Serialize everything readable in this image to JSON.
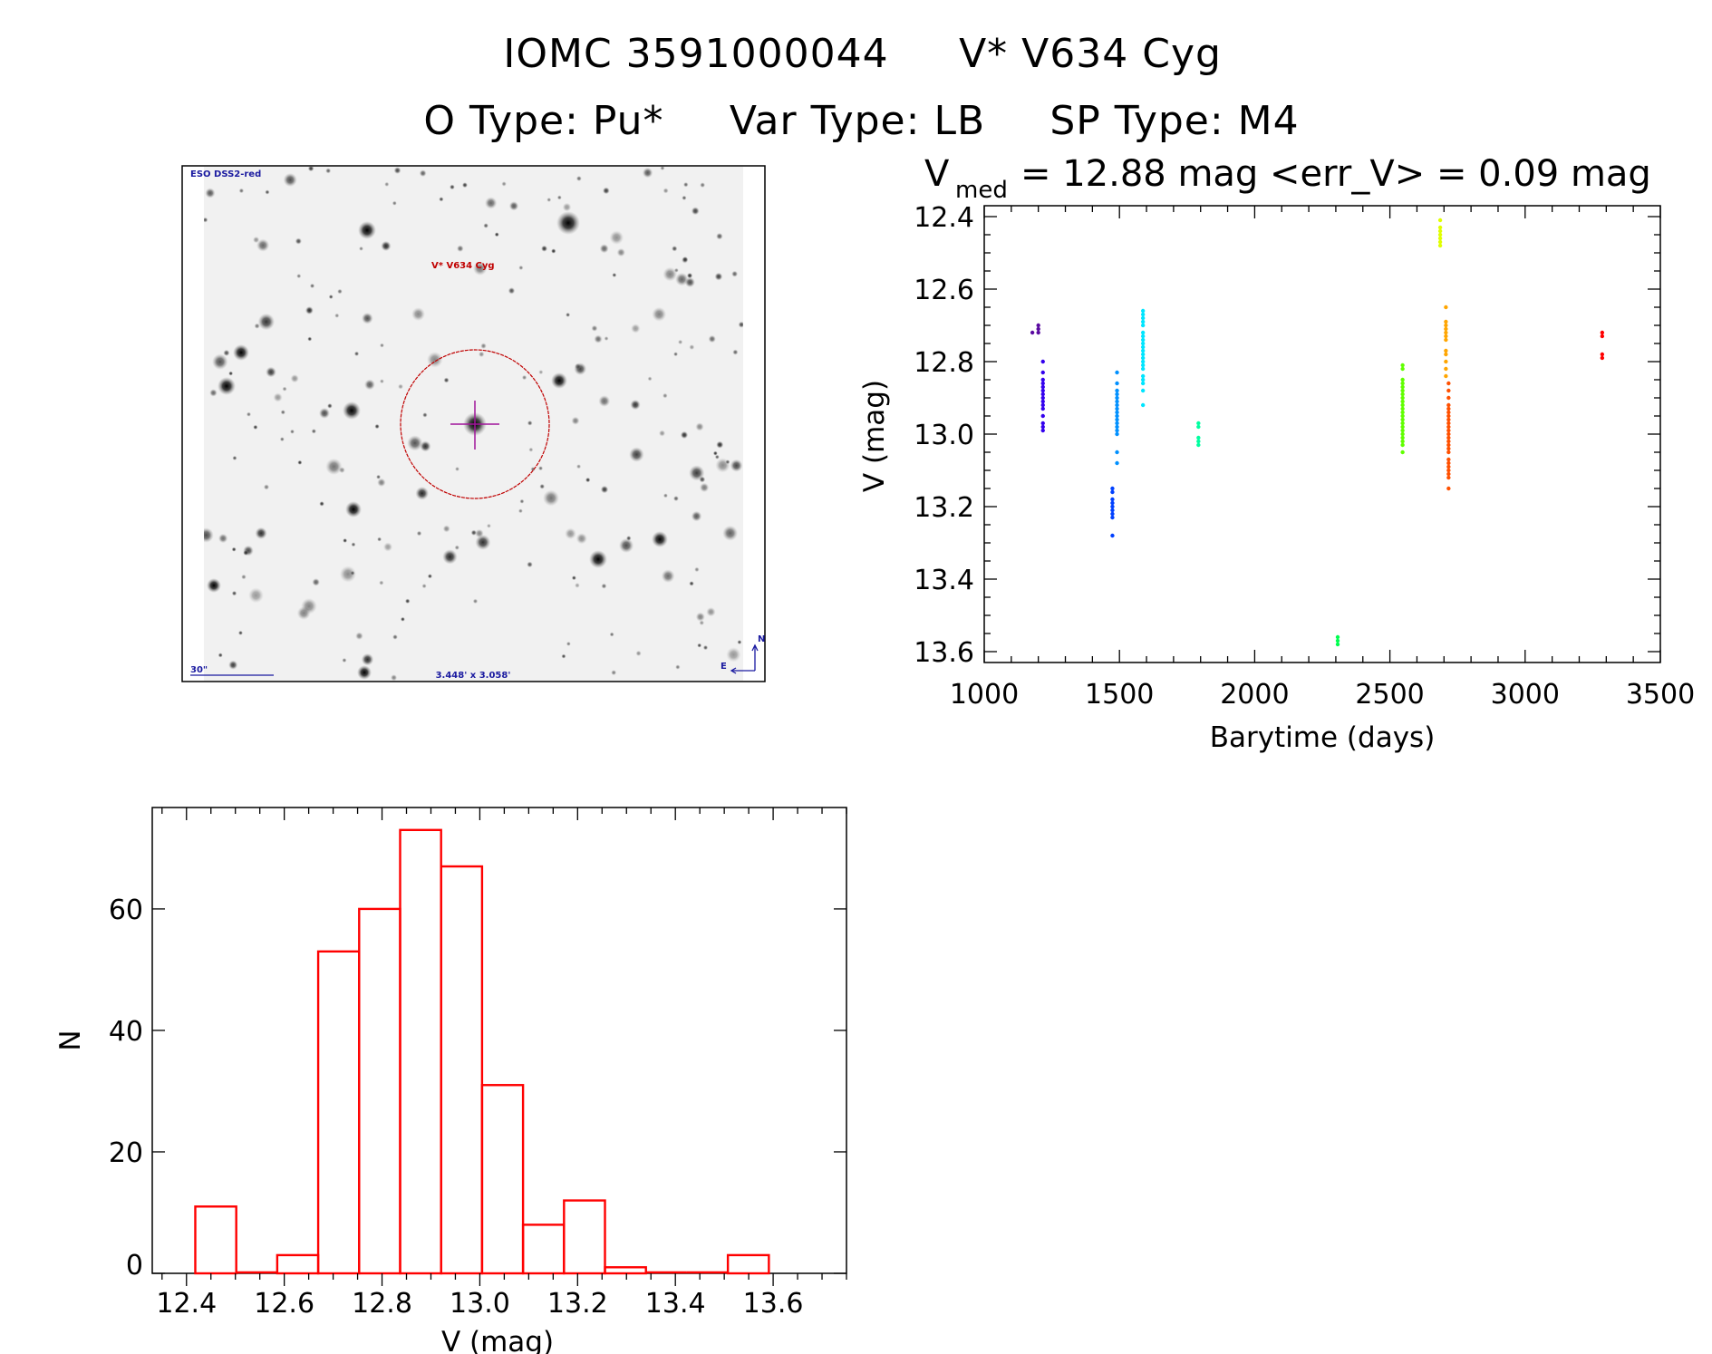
{
  "header": {
    "line1_left": "IOMC 3591000044",
    "line1_right": "V* V634 Cyg",
    "otype": "O Type: Pu*",
    "vartype": "Var Type: LB",
    "sptype": "SP Type: M4"
  },
  "image_panel": {
    "survey_label": "ESO DSS2-red",
    "target_label": "V* V634 Cyg",
    "scale_label": "30\"",
    "fov_label": "3.448' x 3.058'",
    "north_label": "N",
    "east_label": "E",
    "target_color": "#c00000",
    "overlay_color": "#1a1aa0"
  },
  "chart_data": [
    {
      "type": "scatter",
      "title_v": "V",
      "title_sub": "med",
      "title_rest": "= 12.88 mag <err_V> = 0.09 mag",
      "xlabel": "Barytime (days)",
      "ylabel": "V (mag)",
      "xlim": [
        1000,
        3500
      ],
      "ylim": [
        13.63,
        12.37
      ],
      "y_inverted": true,
      "xticks": [
        "1000",
        "1500",
        "2000",
        "2500",
        "3000",
        "3500"
      ],
      "yticks": [
        "12.4",
        "12.6",
        "12.8",
        "13.0",
        "13.2",
        "13.4",
        "13.6"
      ],
      "groups": [
        {
          "x": 1178,
          "color": "#5a0aa0",
          "y": [
            12.72
          ]
        },
        {
          "x": 1200,
          "color": "#5a0aa0",
          "y": [
            12.7,
            12.71,
            12.72
          ]
        },
        {
          "x": 1217,
          "color": "#3300ee",
          "y": [
            12.8,
            12.83,
            12.85,
            12.86,
            12.87,
            12.88,
            12.89,
            12.9,
            12.91,
            12.92,
            12.93,
            12.95,
            12.97,
            12.98,
            12.99
          ]
        },
        {
          "x": 1474,
          "color": "#0040ff",
          "y": [
            13.15,
            13.16,
            13.18,
            13.19,
            13.2,
            13.21,
            13.22,
            13.23,
            13.28
          ]
        },
        {
          "x": 1491,
          "color": "#0090ff",
          "y": [
            12.83,
            12.86,
            12.88,
            12.89,
            12.9,
            12.91,
            12.92,
            12.93,
            12.94,
            12.95,
            12.96,
            12.97,
            12.98,
            12.99,
            13.0,
            13.05,
            13.08
          ]
        },
        {
          "x": 1587,
          "color": "#00e5ff",
          "y": [
            12.66,
            12.67,
            12.68,
            12.69,
            12.7,
            12.72,
            12.73,
            12.74,
            12.75,
            12.76,
            12.77,
            12.78,
            12.79,
            12.8,
            12.81,
            12.82,
            12.84,
            12.85,
            12.86,
            12.88,
            12.92
          ]
        },
        {
          "x": 1792,
          "color": "#00ffa0",
          "y": [
            12.97,
            12.98,
            13.01,
            13.02,
            13.03
          ]
        },
        {
          "x": 2307,
          "color": "#00ff50",
          "y": [
            13.56,
            13.57,
            13.58
          ]
        },
        {
          "x": 2547,
          "color": "#60ff00",
          "y": [
            12.81,
            12.82,
            12.85,
            12.86,
            12.87,
            12.88,
            12.89,
            12.9,
            12.91,
            12.92,
            12.93,
            12.94,
            12.95,
            12.96,
            12.97,
            12.98,
            12.99,
            13.0,
            13.01,
            13.02,
            13.03,
            13.05
          ]
        },
        {
          "x": 2686,
          "color": "#e0ff00",
          "y": [
            12.41,
            12.43,
            12.44,
            12.45,
            12.46,
            12.47,
            12.48
          ]
        },
        {
          "x": 2707,
          "color": "#ffa500",
          "y": [
            12.65,
            12.69,
            12.7,
            12.71,
            12.72,
            12.73,
            12.74,
            12.77,
            12.78,
            12.8,
            12.82,
            12.84
          ]
        },
        {
          "x": 2717,
          "color": "#ff5000",
          "y": [
            12.86,
            12.88,
            12.9,
            12.92,
            12.93,
            12.94,
            12.95,
            12.96,
            12.97,
            12.98,
            12.99,
            13.0,
            13.01,
            13.02,
            13.03,
            13.04,
            13.05,
            13.07,
            13.08,
            13.09,
            13.1,
            13.11,
            13.12,
            13.15
          ]
        },
        {
          "x": 3285,
          "color": "#ff0000",
          "y": [
            12.72,
            12.73,
            12.78,
            12.79
          ]
        }
      ]
    },
    {
      "type": "bar",
      "histogram": true,
      "xlabel": "V (mag)",
      "ylabel": "N",
      "xlim": [
        12.33,
        13.75
      ],
      "ylim": [
        0,
        76.7
      ],
      "xticks": [
        "12.4",
        "12.6",
        "12.8",
        "13.0",
        "13.2",
        "13.4",
        "13.6"
      ],
      "yticks": [
        "0",
        "20",
        "40",
        "60"
      ],
      "bin_start": 12.418,
      "bin_width": 0.0838,
      "counts": [
        11,
        0,
        3,
        53,
        60,
        73,
        67,
        31,
        8,
        12,
        1,
        0,
        0,
        3
      ],
      "color": "#ff0000"
    }
  ]
}
